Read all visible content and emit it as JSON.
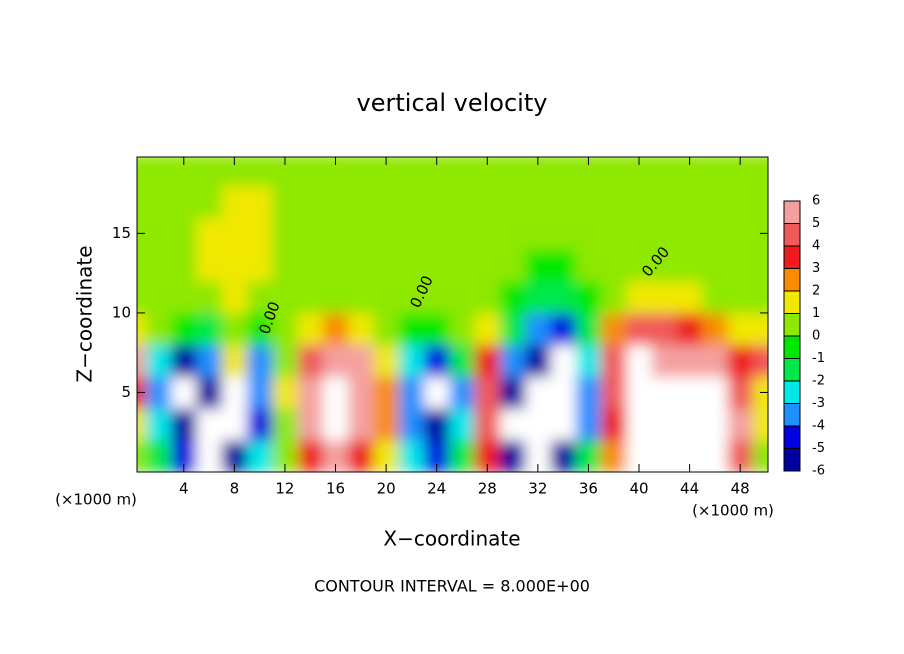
{
  "chart_data": {
    "type": "contour",
    "title": "vertical velocity",
    "xlabel": "X−coordinate",
    "ylabel": "Z−coordinate",
    "xunits": "(×1000 m)",
    "yunits": "(×1000 m)",
    "footer": "CONTOUR INTERVAL = 8.000E+00",
    "contour_labels": [
      "0.00",
      "0.00",
      "0.00"
    ],
    "xlim": [
      0.3,
      50.2
    ],
    "ylim": [
      0,
      19.8
    ],
    "xticks": [
      4,
      8,
      12,
      16,
      20,
      24,
      28,
      32,
      36,
      40,
      44,
      48
    ],
    "yticks": [
      5,
      10,
      15
    ],
    "levels": [
      6,
      5,
      4,
      3,
      2,
      1,
      0,
      -1,
      -2,
      -3,
      -4,
      -5,
      -6
    ],
    "colors": [
      "#f4a0a0",
      "#f05a5a",
      "#ee1c1c",
      "#f88c00",
      "#f0e800",
      "#8ee800",
      "#00e800",
      "#00e84a",
      "#00e8e8",
      "#1e90ff",
      "#0000e0",
      "#0000a0"
    ],
    "outside_color": "#ffffff",
    "x": [
      0,
      2,
      4,
      6,
      8,
      10,
      12,
      14,
      16,
      18,
      20,
      22,
      24,
      26,
      28,
      30,
      32,
      34,
      36,
      38,
      40,
      42,
      44,
      46,
      48,
      50
    ],
    "y": [
      1,
      3,
      5,
      7,
      9,
      11,
      13,
      15,
      17,
      19
    ],
    "z": [
      [
        0,
        -2,
        -5,
        -7,
        -6,
        -3,
        0,
        3,
        5,
        3,
        1,
        -3,
        -5,
        -2,
        3,
        -6,
        -7,
        -6,
        -2,
        2,
        7,
        7,
        7,
        7,
        4,
        0.5
      ],
      [
        1,
        -3,
        -6,
        -7,
        -7,
        -5,
        0,
        5,
        7,
        5,
        2,
        -4,
        -6,
        -3,
        4,
        -7,
        -7,
        -7,
        -4,
        3,
        7,
        7,
        7,
        7,
        5,
        1
      ],
      [
        3,
        -4,
        -7,
        -6,
        -8,
        -4,
        1,
        5,
        7,
        6,
        2,
        -4,
        -7,
        -4,
        4,
        -6,
        -7,
        -7,
        -4,
        4,
        7,
        7,
        7,
        7,
        4,
        1
      ],
      [
        5,
        -3,
        -6,
        -4,
        1,
        -4,
        0,
        4,
        5,
        5,
        1,
        -3,
        -5,
        -2,
        3,
        -4,
        -6,
        -7,
        -3,
        4,
        7,
        6,
        6,
        5,
        3,
        4
      ],
      [
        1,
        0,
        -1,
        -2,
        0,
        -1,
        0,
        1,
        2,
        1,
        0,
        -1,
        -1,
        0,
        1,
        -2,
        -4,
        -5,
        -2,
        2,
        4,
        4,
        3,
        2,
        1,
        1
      ],
      [
        0.5,
        0.5,
        0,
        0.5,
        1,
        0.5,
        0,
        0,
        0.5,
        0.5,
        0.5,
        0,
        0,
        0.5,
        0.5,
        -1,
        -2,
        -2,
        -1,
        0.5,
        1,
        1,
        1,
        0.5,
        0.5,
        0.5
      ],
      [
        0.5,
        0.5,
        0.5,
        1,
        1,
        1,
        0.5,
        0.5,
        0.5,
        0.5,
        0.5,
        0.5,
        0.5,
        0.5,
        0,
        0,
        -0.5,
        -0.5,
        0,
        0.5,
        0.5,
        0.5,
        0.5,
        0.5,
        0.5,
        0.5
      ],
      [
        0.5,
        0.5,
        0.5,
        1,
        1,
        1,
        0.5,
        0.5,
        0.5,
        0.5,
        0.5,
        0.5,
        0.5,
        0.5,
        0.5,
        0.5,
        0.5,
        0.5,
        0.5,
        0.5,
        0.5,
        0.5,
        0.5,
        0.5,
        0.5,
        0.5
      ],
      [
        0.5,
        0.5,
        0.5,
        0.5,
        1,
        1,
        0.5,
        0.5,
        0.5,
        0.5,
        0.5,
        0.5,
        0.5,
        0.5,
        0.5,
        0.5,
        0.5,
        0.5,
        0.5,
        0.5,
        0.5,
        0.5,
        0.5,
        0.5,
        0.5,
        0.5
      ],
      [
        0.5,
        0.5,
        0.5,
        0.5,
        0.5,
        0.5,
        0.5,
        0.5,
        0.5,
        0.5,
        0.5,
        0.5,
        0.5,
        0.5,
        0.5,
        0.5,
        0.5,
        0.5,
        0.5,
        0.5,
        0.5,
        0.5,
        0.5,
        0.5,
        0.5,
        0.5
      ]
    ]
  }
}
